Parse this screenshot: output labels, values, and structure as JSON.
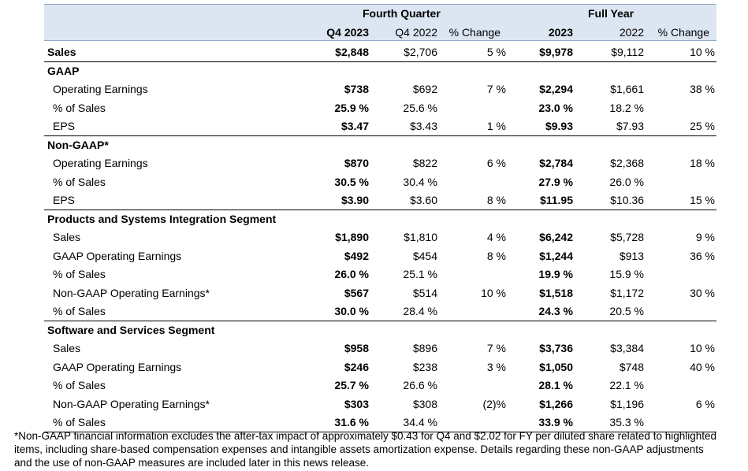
{
  "header": {
    "group1": "Fourth Quarter",
    "group2": "Full Year",
    "cols": [
      "Q4 2023",
      "Q4 2022",
      "% Change",
      "2023",
      "2022",
      "% Change"
    ]
  },
  "rows": [
    {
      "label": "Sales",
      "section": true,
      "vals": [
        "$2,848",
        "$2,706",
        "5 %",
        "$9,978",
        "$9,112",
        "10 %"
      ]
    },
    {
      "label": "GAAP",
      "section": true,
      "vals": [
        "",
        "",
        "",
        "",
        "",
        ""
      ]
    },
    {
      "label": "Operating Earnings",
      "vals": [
        "$738",
        "$692",
        "7 %",
        "$2,294",
        "$1,661",
        "38 %"
      ]
    },
    {
      "label": "% of Sales",
      "vals": [
        "25.9 %",
        "25.6 %",
        "",
        "23.0 %",
        "18.2 %",
        ""
      ]
    },
    {
      "label": "EPS",
      "vals": [
        "$3.47",
        "$3.43",
        "1 %",
        "$9.93",
        "$7.93",
        "25 %"
      ]
    },
    {
      "label": "Non-GAAP*",
      "section": true,
      "vals": [
        "",
        "",
        "",
        "",
        "",
        ""
      ]
    },
    {
      "label": "Operating Earnings",
      "vals": [
        "$870",
        "$822",
        "6 %",
        "$2,784",
        "$2,368",
        "18 %"
      ]
    },
    {
      "label": "% of Sales",
      "vals": [
        "30.5 %",
        "30.4 %",
        "",
        "27.9 %",
        "26.0 %",
        ""
      ]
    },
    {
      "label": "EPS",
      "vals": [
        "$3.90",
        "$3.60",
        "8 %",
        "$11.95",
        "$10.36",
        "15 %"
      ]
    },
    {
      "label": "Products and Systems Integration Segment",
      "section": true,
      "vals": [
        "",
        "",
        "",
        "",
        "",
        ""
      ]
    },
    {
      "label": "Sales",
      "vals": [
        "$1,890",
        "$1,810",
        "4 %",
        "$6,242",
        "$5,728",
        "9 %"
      ]
    },
    {
      "label": "GAAP Operating Earnings",
      "vals": [
        "$492",
        "$454",
        "8 %",
        "$1,244",
        "$913",
        "36 %"
      ]
    },
    {
      "label": "% of Sales",
      "vals": [
        "26.0 %",
        "25.1 %",
        "",
        "19.9 %",
        "15.9 %",
        ""
      ]
    },
    {
      "label": "Non-GAAP Operating Earnings*",
      "vals": [
        "$567",
        "$514",
        "10 %",
        "$1,518",
        "$1,172",
        "30 %"
      ]
    },
    {
      "label": "% of Sales",
      "vals": [
        "30.0 %",
        "28.4 %",
        "",
        "24.3 %",
        "20.5 %",
        ""
      ]
    },
    {
      "label": "Software and Services Segment",
      "section": true,
      "vals": [
        "",
        "",
        "",
        "",
        "",
        ""
      ]
    },
    {
      "label": "Sales",
      "vals": [
        "$958",
        "$896",
        "7 %",
        "$3,736",
        "$3,384",
        "10 %"
      ]
    },
    {
      "label": "GAAP Operating Earnings",
      "vals": [
        "$246",
        "$238",
        "3 %",
        "$1,050",
        "$748",
        "40 %"
      ]
    },
    {
      "label": "% of Sales",
      "vals": [
        "25.7 %",
        "26.6 %",
        "",
        "28.1 %",
        "22.1 %",
        ""
      ]
    },
    {
      "label": "Non-GAAP Operating Earnings*",
      "vals": [
        "$303",
        "$308",
        "(2)%",
        "$1,266",
        "$1,196",
        "6 %"
      ]
    },
    {
      "label": "% of Sales",
      "vals": [
        "31.6 %",
        "34.4 %",
        "",
        "33.9 %",
        "35.3 %",
        ""
      ]
    }
  ],
  "footnote": "*Non-GAAP financial information excludes the after-tax impact of approximately $0.43 for Q4 and $2.02 for FY per diluted share related to highlighted items, including share-based compensation expenses and intangible assets amortization expense. Details regarding these non-GAAP adjustments and the use of non-GAAP measures are included later in this news release."
}
